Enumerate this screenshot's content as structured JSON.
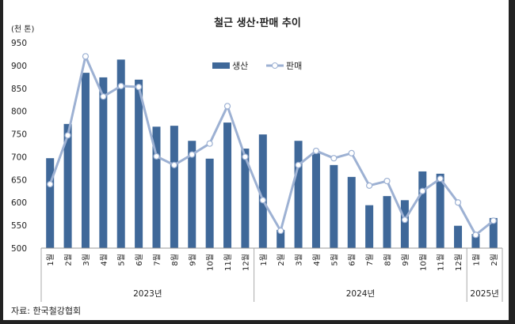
{
  "chart_data": {
    "type": "bar+line",
    "title": "철근 생산·판매 추이",
    "ylabel": "(천 톤)",
    "ylim": [
      500,
      950
    ],
    "yticks": [
      500,
      550,
      600,
      650,
      700,
      750,
      800,
      850,
      900,
      950
    ],
    "grid": false,
    "legend_position": "top-right",
    "categories": [
      "1월",
      "2월",
      "3월",
      "4월",
      "5월",
      "6월",
      "7월",
      "8월",
      "9월",
      "10월",
      "11월",
      "12월",
      "1월",
      "2월",
      "3월",
      "4월",
      "5월",
      "6월",
      "7월",
      "8월",
      "9월",
      "10월",
      "11월",
      "12월",
      "1월",
      "2월"
    ],
    "groups": [
      {
        "label": "2023년",
        "count": 12
      },
      {
        "label": "2024년",
        "count": 12
      },
      {
        "label": "2025년",
        "count": 2
      }
    ],
    "series": [
      {
        "name": "생산",
        "type": "bar",
        "color": "#3F6899",
        "values": [
          697,
          772,
          884,
          874,
          913,
          869,
          766,
          768,
          735,
          696,
          775,
          718,
          749,
          540,
          735,
          709,
          682,
          656,
          594,
          614,
          605,
          668,
          663,
          549,
          531,
          566
        ]
      },
      {
        "name": "판매",
        "type": "line",
        "color": "#9DB1D3",
        "values": [
          640,
          747,
          920,
          832,
          855,
          853,
          701,
          682,
          705,
          729,
          811,
          700,
          605,
          538,
          682,
          713,
          697,
          708,
          637,
          647,
          562,
          625,
          652,
          600,
          529,
          560
        ]
      }
    ],
    "source": "자료: 한국철강협회"
  }
}
